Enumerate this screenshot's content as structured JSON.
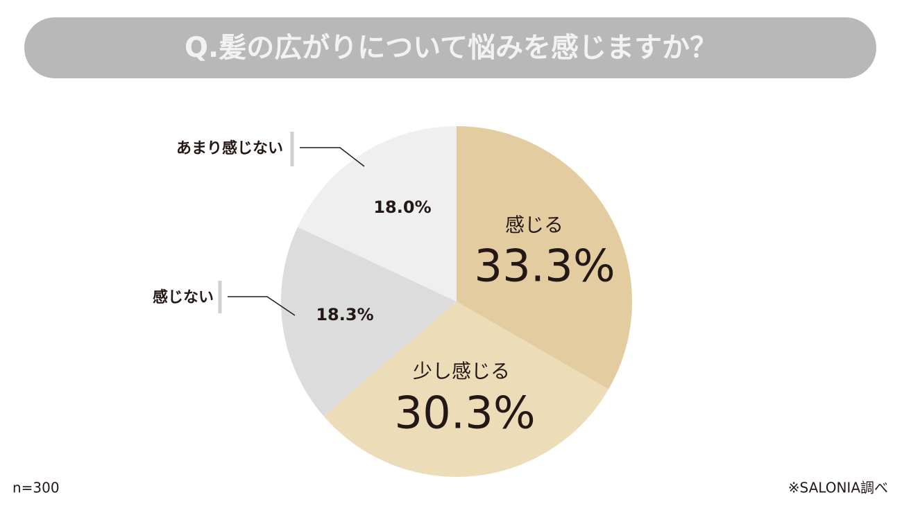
{
  "chart_data": {
    "type": "pie",
    "title": "Q.髪の広がりについて悩みを感じますか？",
    "categories": [
      "感じる",
      "少し感じる",
      "感じない",
      "あまり感じない"
    ],
    "values": [
      33.3,
      30.3,
      18.3,
      18.0
    ],
    "value_labels": [
      "33.3%",
      "30.3%",
      "18.3%",
      "18.0%"
    ],
    "colors": [
      "#e3cc9f",
      "#ecdcb8",
      "#dcdcdc",
      "#efefef"
    ],
    "note": "n=300",
    "source": "※SALONIA調べ"
  }
}
